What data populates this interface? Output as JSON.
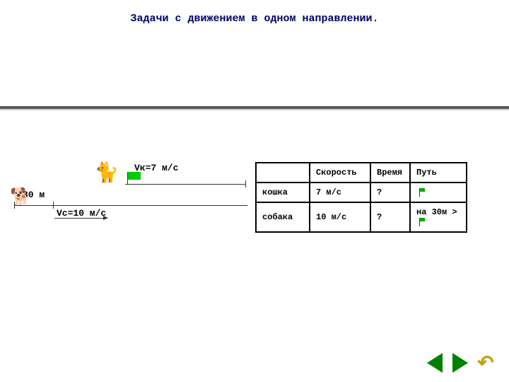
{
  "title": "Задачи с движением в одном направлении.",
  "diagram": {
    "vk_label": "Vк=7 м/с",
    "vc_label": "Vс=10 м/с",
    "distance_label": "30 м",
    "colors": {
      "flag": "#00cc00",
      "line": "#333333",
      "icon": "#666666"
    }
  },
  "table": {
    "headers": [
      "",
      "Скорость",
      "Время",
      "Путь"
    ],
    "rows": [
      {
        "name": "кошка",
        "speed": "7 м/с",
        "time": "?",
        "path": ""
      },
      {
        "name": "собака",
        "speed": "10 м/с",
        "time": "?",
        "path": "на 30м >"
      }
    ]
  },
  "nav": {
    "back": "back",
    "forward": "forward",
    "return": "return"
  }
}
